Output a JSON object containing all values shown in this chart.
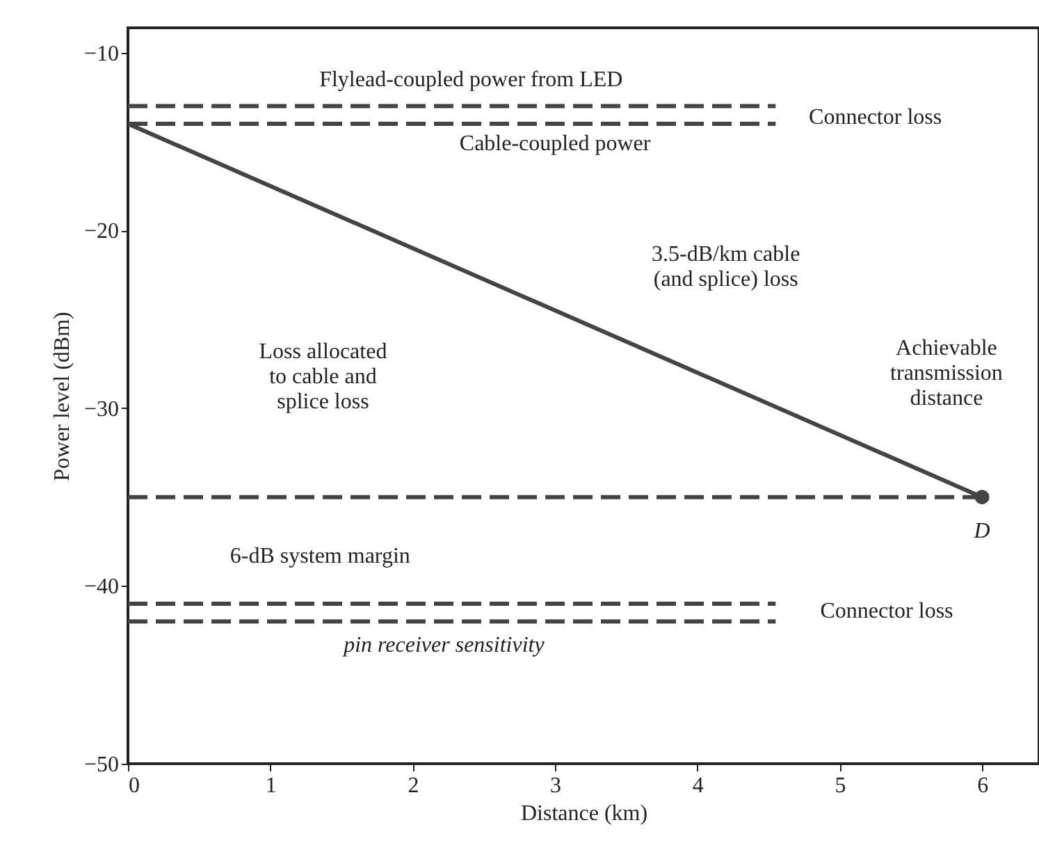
{
  "chart_data": {
    "type": "line",
    "xlabel": "Distance (km)",
    "ylabel": "Power level (dBm)",
    "xlim": [
      0,
      6.4
    ],
    "ylim": [
      -50,
      -8.6
    ],
    "xticks": [
      0,
      1,
      2,
      3,
      4,
      5,
      6
    ],
    "yticks": [
      -10,
      -20,
      -30,
      -40,
      -50
    ],
    "grid": false,
    "series": [
      {
        "line_style": "dashed",
        "color": "#444444",
        "x": [
          0,
          4.55
        ],
        "values": [
          -13,
          -13
        ]
      },
      {
        "line_style": "dashed",
        "color": "#444444",
        "x": [
          0,
          4.55
        ],
        "values": [
          -14,
          -14
        ]
      },
      {
        "line_style": "dashed",
        "color": "#444444",
        "x": [
          0,
          6
        ],
        "values": [
          -35,
          -35
        ]
      },
      {
        "line_style": "dashed",
        "color": "#444444",
        "x": [
          0,
          4.55
        ],
        "values": [
          -41,
          -41
        ]
      },
      {
        "line_style": "dashed",
        "color": "#444444",
        "x": [
          0,
          4.55
        ],
        "values": [
          -42,
          -42
        ]
      },
      {
        "line_style": "solid",
        "color": "#444444",
        "x": [
          0,
          6
        ],
        "values": [
          -14,
          -35
        ]
      },
      {
        "type": "scatter",
        "marker": "circle",
        "color": "#444444",
        "x": [
          6
        ],
        "values": [
          -35
        ]
      }
    ],
    "annotations": [
      "Flylead-coupled power from LED",
      "Connector loss",
      "Cable-coupled power",
      "3.5-dB/km cable\n(and splice) loss",
      "Loss allocated\nto cable and\nsplice loss",
      "Achievable\ntransmission\ndistance",
      "D",
      "6-dB system margin",
      "Connector loss",
      "pin receiver sensitivity"
    ]
  }
}
